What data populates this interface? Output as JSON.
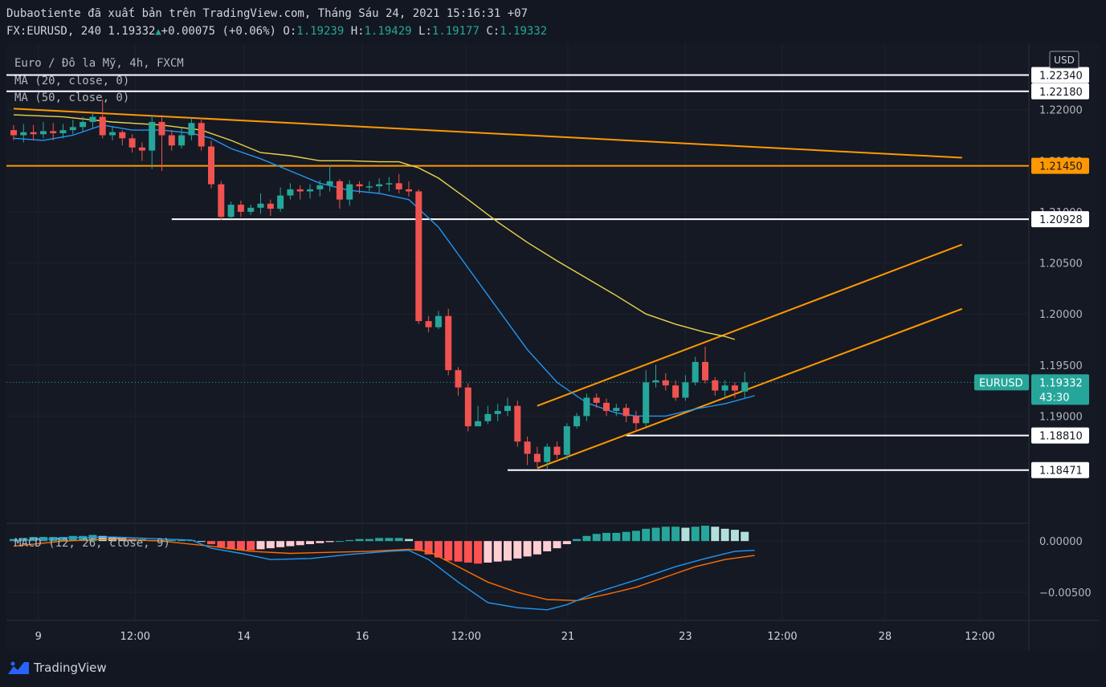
{
  "header": {
    "published": "Dubaotiente đã xuất bản trên TradingView.com, Tháng Sáu 24, 2021 15:16:31 +07",
    "symbol_line": "FX:EURUSD, 240 1.19332",
    "change": "+0.00075 (+0.06%)",
    "o_key": "O:",
    "o_val": "1.19239",
    "h_key": "H:",
    "h_val": "1.19429",
    "l_key": "L:",
    "l_val": "1.19177",
    "c_key": "C:",
    "c_val": "1.19332"
  },
  "legend": {
    "series": "Euro / Đô la Mỹ, 4h, FXCM",
    "ma20": "MA (20, close, 0)",
    "ma50": "MA (50, close, 0)",
    "macd": "MACD (12, 26, close, 9)"
  },
  "currency": "USD",
  "price_tag": {
    "symbol": "EURUSD",
    "price": "1.19332",
    "countdown": "43:30"
  },
  "colors": {
    "background": "#131722",
    "up": "#26a69a",
    "down": "#ef5350",
    "ma20": "#2196f3",
    "ma50": "#e6d44a",
    "trendline": "#ff9800",
    "macd_line": "#2196f3",
    "signal_line": "#ff6d00"
  },
  "branding": "TradingView",
  "chart_data": {
    "type": "candlestick",
    "y_ticks": [
      "1.22000",
      "1.21500",
      "1.21000",
      "1.20500",
      "1.20000",
      "1.19500",
      "1.19000"
    ],
    "x_ticks": [
      "9",
      "12:00",
      "14",
      "16",
      "12:00",
      "21",
      "23",
      "12:00",
      "28",
      "12:00"
    ],
    "ylim": [
      1.1795,
      1.2265
    ],
    "macd_ticks": [
      "0.00000",
      "−0.00500"
    ],
    "price_lines": [
      {
        "label": "1.22340",
        "value": 1.2234,
        "color": "#ffffff",
        "x_start": 0
      },
      {
        "label": "1.22180",
        "value": 1.2218,
        "color": "#ffffff",
        "x_start": 0
      },
      {
        "label": "1.21450",
        "value": 1.2145,
        "color": "#ff9800",
        "x_start": 0
      },
      {
        "label": "1.20928",
        "value": 1.20928,
        "color": "#ffffff",
        "x_start": 16
      },
      {
        "label": "1.18810",
        "value": 1.1881,
        "color": "#ffffff",
        "x_start": 62
      },
      {
        "label": "1.18471",
        "value": 1.18471,
        "color": "#ffffff",
        "x_start": 50
      }
    ],
    "trendlines": [
      {
        "x1": 0,
        "y1": 1.2201,
        "x2": 96,
        "y2": 1.2153
      },
      {
        "x1": 53,
        "y1": 1.191,
        "x2": 96,
        "y2": 1.2068
      },
      {
        "x1": 53,
        "y1": 1.1849,
        "x2": 96,
        "y2": 1.2005
      }
    ],
    "candles": [
      [
        1.218,
        1.2175,
        1.2185,
        1.217
      ],
      [
        1.2175,
        1.2178,
        1.2186,
        1.2168
      ],
      [
        1.2178,
        1.2176,
        1.2185,
        1.217
      ],
      [
        1.2176,
        1.2179,
        1.2188,
        1.2172
      ],
      [
        1.2179,
        1.2177,
        1.2187,
        1.217
      ],
      [
        1.2177,
        1.218,
        1.2186,
        1.2172
      ],
      [
        1.218,
        1.2183,
        1.219,
        1.2176
      ],
      [
        1.2183,
        1.2188,
        1.2193,
        1.2178
      ],
      [
        1.2188,
        1.2193,
        1.2197,
        1.2182
      ],
      [
        1.2193,
        1.2175,
        1.221,
        1.2172
      ],
      [
        1.2175,
        1.2178,
        1.2183,
        1.217
      ],
      [
        1.2178,
        1.2172,
        1.218,
        1.2165
      ],
      [
        1.2172,
        1.2163,
        1.2176,
        1.2158
      ],
      [
        1.2163,
        1.216,
        1.2168,
        1.215
      ],
      [
        1.216,
        1.2188,
        1.2195,
        1.2142
      ],
      [
        1.2188,
        1.2175,
        1.2195,
        1.214
      ],
      [
        1.2175,
        1.2165,
        1.218,
        1.216
      ],
      [
        1.2165,
        1.2175,
        1.2182,
        1.2162
      ],
      [
        1.2175,
        1.2187,
        1.2192,
        1.217
      ],
      [
        1.2187,
        1.2164,
        1.2192,
        1.216
      ],
      [
        1.2164,
        1.2127,
        1.217,
        1.2123
      ],
      [
        1.2127,
        1.2095,
        1.213,
        1.2092
      ],
      [
        1.2095,
        1.2107,
        1.211,
        1.2093
      ],
      [
        1.2107,
        1.21,
        1.2111,
        1.2095
      ],
      [
        1.21,
        1.2104,
        1.2107,
        1.2097
      ],
      [
        1.2104,
        1.2108,
        1.2118,
        1.2098
      ],
      [
        1.2108,
        1.2103,
        1.2112,
        1.2096
      ],
      [
        1.2103,
        1.2116,
        1.2124,
        1.21
      ],
      [
        1.2116,
        1.2122,
        1.2128,
        1.2112
      ],
      [
        1.2122,
        1.212,
        1.2126,
        1.2112
      ],
      [
        1.212,
        1.2122,
        1.2127,
        1.2113
      ],
      [
        1.2122,
        1.2126,
        1.2131,
        1.2115
      ],
      [
        1.2126,
        1.213,
        1.2146,
        1.212
      ],
      [
        1.213,
        1.2112,
        1.2132,
        1.2103
      ],
      [
        1.2112,
        1.2127,
        1.2131,
        1.2106
      ],
      [
        1.2127,
        1.2125,
        1.213,
        1.2118
      ],
      [
        1.2125,
        1.2125,
        1.213,
        1.212
      ],
      [
        1.2125,
        1.2127,
        1.2133,
        1.2118
      ],
      [
        1.2127,
        1.2128,
        1.2134,
        1.212
      ],
      [
        1.2128,
        1.2122,
        1.2137,
        1.2118
      ],
      [
        1.2122,
        1.212,
        1.213,
        1.2115
      ],
      [
        1.212,
        1.1993,
        1.2122,
        1.199
      ],
      [
        1.1993,
        1.1987,
        1.1998,
        1.1982
      ],
      [
        1.1987,
        1.1998,
        1.2003,
        1.1985
      ],
      [
        1.1998,
        1.1945,
        1.2005,
        1.194
      ],
      [
        1.1945,
        1.1928,
        1.1948,
        1.192
      ],
      [
        1.1928,
        1.189,
        1.1932,
        1.1885
      ],
      [
        1.189,
        1.1895,
        1.191,
        1.189
      ],
      [
        1.1895,
        1.1902,
        1.191,
        1.1892
      ],
      [
        1.1902,
        1.1905,
        1.1912,
        1.1895
      ],
      [
        1.1905,
        1.191,
        1.1918,
        1.19
      ],
      [
        1.191,
        1.1875,
        1.1915,
        1.187
      ],
      [
        1.1875,
        1.1863,
        1.188,
        1.1852
      ],
      [
        1.1863,
        1.1855,
        1.187,
        1.185
      ],
      [
        1.1855,
        1.187,
        1.1873,
        1.1848
      ],
      [
        1.187,
        1.1862,
        1.1875,
        1.1858
      ],
      [
        1.1862,
        1.189,
        1.1893,
        1.1857
      ],
      [
        1.189,
        1.19,
        1.1903,
        1.1888
      ],
      [
        1.19,
        1.1918,
        1.1922,
        1.1895
      ],
      [
        1.1918,
        1.1913,
        1.1922,
        1.1908
      ],
      [
        1.1913,
        1.1905,
        1.1917,
        1.19
      ],
      [
        1.1905,
        1.1908,
        1.1912,
        1.19
      ],
      [
        1.1908,
        1.19,
        1.1912,
        1.1894
      ],
      [
        1.19,
        1.1893,
        1.1905,
        1.1885
      ],
      [
        1.1893,
        1.1933,
        1.1945,
        1.189
      ],
      [
        1.1933,
        1.1935,
        1.195,
        1.1928
      ],
      [
        1.1935,
        1.193,
        1.1942,
        1.1925
      ],
      [
        1.193,
        1.1918,
        1.1935,
        1.1915
      ],
      [
        1.1918,
        1.1933,
        1.194,
        1.1915
      ],
      [
        1.1933,
        1.1953,
        1.1958,
        1.193
      ],
      [
        1.1953,
        1.1935,
        1.1968,
        1.1932
      ],
      [
        1.1935,
        1.1925,
        1.1938,
        1.192
      ],
      [
        1.1925,
        1.193,
        1.1935,
        1.1918
      ],
      [
        1.193,
        1.1925,
        1.1933,
        1.1918
      ],
      [
        1.1924,
        1.1933,
        1.1943,
        1.1918
      ]
    ],
    "ma20": [
      [
        0,
        1.2172
      ],
      [
        3,
        1.217
      ],
      [
        6,
        1.2175
      ],
      [
        9,
        1.2185
      ],
      [
        12,
        1.218
      ],
      [
        15,
        1.218
      ],
      [
        18,
        1.2177
      ],
      [
        20,
        1.2172
      ],
      [
        22,
        1.2162
      ],
      [
        25,
        1.2152
      ],
      [
        28,
        1.214
      ],
      [
        31,
        1.2128
      ],
      [
        34,
        1.2121
      ],
      [
        37,
        1.2118
      ],
      [
        40,
        1.2112
      ],
      [
        43,
        1.2085
      ],
      [
        46,
        1.2045
      ],
      [
        49,
        1.2005
      ],
      [
        52,
        1.1965
      ],
      [
        55,
        1.1933
      ],
      [
        58,
        1.1913
      ],
      [
        61,
        1.1903
      ],
      [
        63,
        1.19
      ],
      [
        66,
        1.19
      ],
      [
        69,
        1.1907
      ],
      [
        72,
        1.1912
      ],
      [
        75,
        1.192
      ]
    ],
    "ma50": [
      [
        0,
        1.2195
      ],
      [
        5,
        1.2193
      ],
      [
        10,
        1.2188
      ],
      [
        15,
        1.2185
      ],
      [
        19,
        1.218
      ],
      [
        22,
        1.217
      ],
      [
        25,
        1.2158
      ],
      [
        28,
        1.2155
      ],
      [
        31,
        1.215
      ],
      [
        34,
        1.215
      ],
      [
        37,
        1.2149
      ],
      [
        39,
        1.2149
      ],
      [
        41,
        1.2143
      ],
      [
        43,
        1.2133
      ],
      [
        46,
        1.2112
      ],
      [
        49,
        1.209
      ],
      [
        52,
        1.207
      ],
      [
        55,
        1.2052
      ],
      [
        58,
        1.2035
      ],
      [
        61,
        1.2018
      ],
      [
        64,
        1.2
      ],
      [
        67,
        1.199
      ],
      [
        70,
        1.1982
      ],
      [
        72,
        1.1978
      ],
      [
        73,
        1.1975
      ]
    ],
    "macd_hist": [
      0.0002,
      0.0003,
      0.0004,
      0.0004,
      0.0004,
      0.0004,
      0.0005,
      0.0005,
      0.0006,
      0.0005,
      0.0004,
      0.0003,
      0.0002,
      0.0002,
      0.0001,
      0.0001,
      0.0001,
      0.0001,
      0.0001,
      0.0,
      -0.0003,
      -0.0006,
      -0.0008,
      -0.0009,
      -0.0009,
      -0.0008,
      -0.0007,
      -0.0006,
      -0.0005,
      -0.0004,
      -0.0003,
      -0.0002,
      -0.0001,
      0.0,
      0.0001,
      0.0002,
      0.0002,
      0.0003,
      0.0003,
      0.0003,
      0.0002,
      -0.0009,
      -0.0013,
      -0.0016,
      -0.0019,
      -0.002,
      -0.0021,
      -0.0022,
      -0.0021,
      -0.002,
      -0.0019,
      -0.0017,
      -0.0015,
      -0.0013,
      -0.001,
      -0.0007,
      -0.0003,
      0.0002,
      0.0005,
      0.0007,
      0.0008,
      0.0008,
      0.0009,
      0.001,
      0.0012,
      0.0013,
      0.0014,
      0.0014,
      0.0013,
      0.0014,
      0.0015,
      0.0014,
      0.0012,
      0.0011,
      0.0009
    ],
    "macd_line": [
      [
        0,
        0.0
      ],
      [
        5,
        0.0003
      ],
      [
        10,
        0.0004
      ],
      [
        15,
        0.0002
      ],
      [
        18,
        0.0001
      ],
      [
        20,
        -0.0007
      ],
      [
        23,
        -0.0012
      ],
      [
        26,
        -0.0018
      ],
      [
        30,
        -0.0017
      ],
      [
        34,
        -0.0013
      ],
      [
        38,
        -0.001
      ],
      [
        40,
        -0.0009
      ],
      [
        42,
        -0.0018
      ],
      [
        45,
        -0.004
      ],
      [
        48,
        -0.006
      ],
      [
        51,
        -0.0065
      ],
      [
        54,
        -0.0067
      ],
      [
        56,
        -0.0062
      ],
      [
        59,
        -0.005
      ],
      [
        63,
        -0.0038
      ],
      [
        67,
        -0.0025
      ],
      [
        70,
        -0.0017
      ],
      [
        73,
        -0.001
      ],
      [
        75,
        -0.0009
      ]
    ],
    "signal_line": [
      [
        0,
        -0.0005
      ],
      [
        5,
        0.0
      ],
      [
        10,
        0.0002
      ],
      [
        15,
        0.0
      ],
      [
        20,
        -0.0005
      ],
      [
        24,
        -0.001
      ],
      [
        28,
        -0.0012
      ],
      [
        32,
        -0.0011
      ],
      [
        36,
        -0.001
      ],
      [
        40,
        -0.0008
      ],
      [
        42,
        -0.001
      ],
      [
        45,
        -0.0025
      ],
      [
        48,
        -0.004
      ],
      [
        51,
        -0.005
      ],
      [
        54,
        -0.0057
      ],
      [
        57,
        -0.0058
      ],
      [
        60,
        -0.0052
      ],
      [
        63,
        -0.0045
      ],
      [
        66,
        -0.0035
      ],
      [
        69,
        -0.0025
      ],
      [
        72,
        -0.0018
      ],
      [
        75,
        -0.0014
      ]
    ],
    "macd_ylim": [
      -0.0075,
      0.0015
    ]
  }
}
